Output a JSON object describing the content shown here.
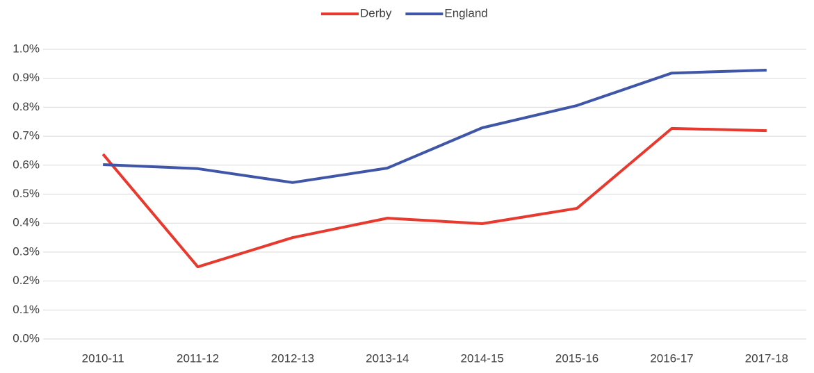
{
  "chart_data": {
    "type": "line",
    "categories": [
      "2010-11",
      "2011-12",
      "2012-13",
      "2013-14",
      "2014-15",
      "2015-16",
      "2016-17",
      "2017-18"
    ],
    "series": [
      {
        "name": "Derby",
        "color": "#e8392f",
        "values": [
          0.638,
          0.249,
          0.35,
          0.417,
          0.398,
          0.451,
          0.727,
          0.719
        ]
      },
      {
        "name": "England",
        "color": "#3f56a8",
        "values": [
          0.602,
          0.588,
          0.54,
          0.59,
          0.729,
          0.806,
          0.918,
          0.928
        ]
      }
    ],
    "ylim": [
      0,
      1.0
    ],
    "yticks": [
      {
        "value": 0,
        "label": "0.0%"
      },
      {
        "value": 0.1,
        "label": "0.1%"
      },
      {
        "value": 0.2,
        "label": "0.2%"
      },
      {
        "value": 0.3,
        "label": "0.3%"
      },
      {
        "value": 0.4,
        "label": "0.4%"
      },
      {
        "value": 0.5,
        "label": "0.5%"
      },
      {
        "value": 0.6,
        "label": "0.6%"
      },
      {
        "value": 0.7,
        "label": "0.7%"
      },
      {
        "value": 0.8,
        "label": "0.8%"
      },
      {
        "value": 0.9,
        "label": "0.9%"
      },
      {
        "value": 1.0,
        "label": "1.0%"
      }
    ],
    "grid": true,
    "legend": "top"
  }
}
